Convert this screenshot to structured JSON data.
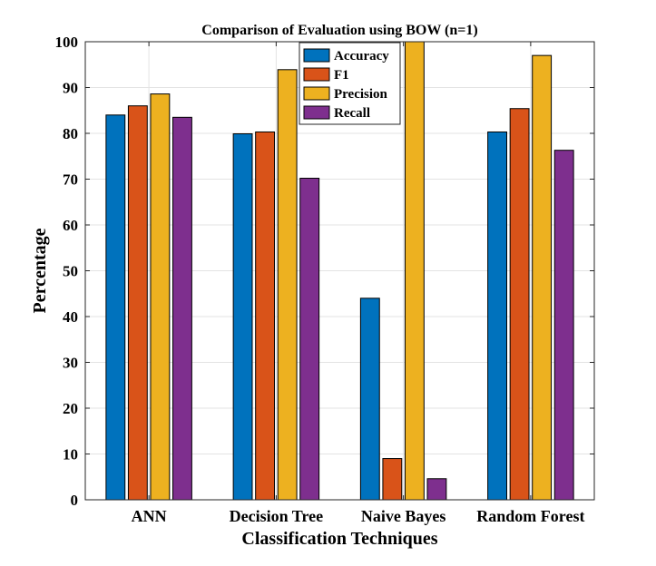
{
  "chart_data": {
    "type": "bar",
    "title": "Comparison of Evaluation using BOW (n=1)",
    "xlabel": "Classification Techniques",
    "ylabel": "Percentage",
    "categories": [
      "ANN",
      "Decision Tree",
      "Naive Bayes",
      "Random Forest"
    ],
    "ylim": [
      0,
      100
    ],
    "yticks": [
      0,
      10,
      20,
      30,
      40,
      50,
      60,
      70,
      80,
      90,
      100
    ],
    "grid": true,
    "legend_position": "top-center",
    "series": [
      {
        "name": "Accuracy",
        "color": "#0072BD",
        "values": [
          84.0,
          79.9,
          44.0,
          80.3
        ]
      },
      {
        "name": "F1",
        "color": "#D95319",
        "values": [
          86.0,
          80.3,
          9.0,
          85.4
        ]
      },
      {
        "name": "Precision",
        "color": "#EDB120",
        "values": [
          88.6,
          93.9,
          100.0,
          97.0
        ]
      },
      {
        "name": "Recall",
        "color": "#7E2F8E",
        "values": [
          83.5,
          70.2,
          4.6,
          76.3
        ]
      }
    ]
  }
}
